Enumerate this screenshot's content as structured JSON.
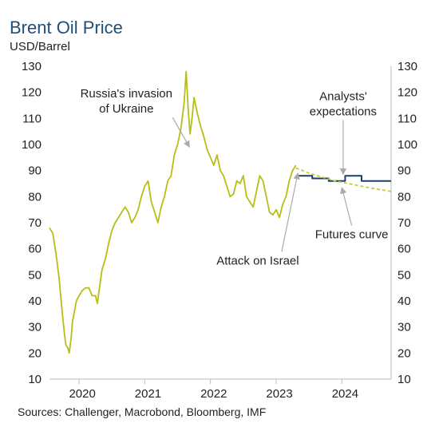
{
  "chart_data": {
    "type": "line",
    "title": "Brent Oil Price",
    "ylabel": "USD/Barrel",
    "source": "Sources: Challenger, Macrobond, Bloomberg, IMF",
    "ylim": [
      10,
      130
    ],
    "yticks": [
      10,
      20,
      30,
      40,
      50,
      60,
      70,
      80,
      90,
      100,
      110,
      120,
      130
    ],
    "xlim": [
      2019.55,
      2024.75
    ],
    "xtick_labels": [
      "2020",
      "2021",
      "2022",
      "2023",
      "2024"
    ],
    "xtick_centers": [
      2020.05,
      2021.05,
      2022.05,
      2023.05,
      2024.05
    ],
    "grid": false,
    "series": [
      {
        "name": "",
        "color": "#b8be14",
        "style": "solid",
        "x": [
          2019.55,
          2019.6,
          2019.65,
          2019.68,
          2019.7,
          2019.72,
          2019.75,
          2019.78,
          2019.8,
          2019.83,
          2019.85,
          2019.88,
          2019.9,
          2019.93,
          2019.96,
          2020.0,
          2020.05,
          2020.1,
          2020.15,
          2020.2,
          2020.25,
          2020.28,
          2020.3,
          2020.35,
          2020.4,
          2020.45,
          2020.5,
          2020.55,
          2020.6,
          2020.65,
          2020.7,
          2020.75,
          2020.8,
          2020.85,
          2020.9,
          2020.95,
          2021.0,
          2021.05,
          2021.1,
          2021.15,
          2021.2,
          2021.25,
          2021.3,
          2021.35,
          2021.4,
          2021.45,
          2021.5,
          2021.55,
          2021.6,
          2021.63,
          2021.66,
          2021.69,
          2021.72,
          2021.75,
          2021.8,
          2021.85,
          2021.9,
          2021.95,
          2022.0,
          2022.05,
          2022.1,
          2022.15,
          2022.2,
          2022.25,
          2022.3,
          2022.35,
          2022.4,
          2022.45,
          2022.5,
          2022.55,
          2022.6,
          2022.65,
          2022.7,
          2022.75,
          2022.8,
          2022.85,
          2022.9,
          2022.95,
          2023.0,
          2023.05,
          2023.1,
          2023.15,
          2023.2,
          2023.25,
          2023.3
        ],
        "y": [
          68,
          66,
          58,
          52,
          48,
          42,
          34,
          27,
          23,
          22,
          20,
          26,
          32,
          36,
          40,
          42,
          44,
          45,
          45,
          42,
          42,
          39,
          43,
          52,
          56,
          62,
          67,
          70,
          72,
          74,
          76,
          74,
          70,
          72,
          75,
          80,
          84,
          86,
          78,
          74,
          70,
          76,
          80,
          86,
          88,
          96,
          100,
          106,
          116,
          128,
          114,
          104,
          110,
          118,
          112,
          107,
          103,
          98,
          95,
          92,
          96,
          90,
          88,
          84,
          80,
          81,
          86,
          85,
          88,
          80,
          78,
          76,
          82,
          88,
          86,
          80,
          74,
          73,
          75,
          72,
          77,
          80,
          86,
          90,
          92
        ]
      },
      {
        "name": "Analysts' expectations",
        "color": "#1f3d6b",
        "style": "step",
        "x": [
          2023.3,
          2023.55,
          2023.55,
          2023.8,
          2023.8,
          2024.05,
          2024.05,
          2024.3,
          2024.3,
          2024.55,
          2024.55,
          2024.75
        ],
        "y": [
          88,
          88,
          87,
          87,
          86,
          86,
          88,
          88,
          86,
          86,
          86,
          86
        ]
      },
      {
        "name": "Futures curve",
        "color": "#c6cc32",
        "style": "dashed",
        "x": [
          2023.3,
          2023.5,
          2023.7,
          2023.9,
          2024.1,
          2024.3,
          2024.5,
          2024.75
        ],
        "y": [
          91,
          89,
          87.5,
          86,
          85,
          84,
          83,
          82
        ]
      }
    ],
    "annotations": [
      {
        "lines": [
          "Russia's invasion",
          "of Ukraine"
        ],
        "text_x": 2020.72,
        "text_y": 118,
        "target_x": 2021.68,
        "target_y": 99
      },
      {
        "lines": [
          "Analysts'",
          "expectations"
        ],
        "text_x": 2024.02,
        "text_y": 117,
        "target_x": 2024.02,
        "target_y": 88.5
      },
      {
        "lines": [
          "Futures curve"
        ],
        "text_x": 2024.15,
        "text_y": 64,
        "target_x": 2024.0,
        "target_y": 83.5
      },
      {
        "lines": [
          "Attack on Israel"
        ],
        "text_x": 2022.72,
        "text_y": 54,
        "target_x": 2023.33,
        "target_y": 89
      }
    ]
  }
}
